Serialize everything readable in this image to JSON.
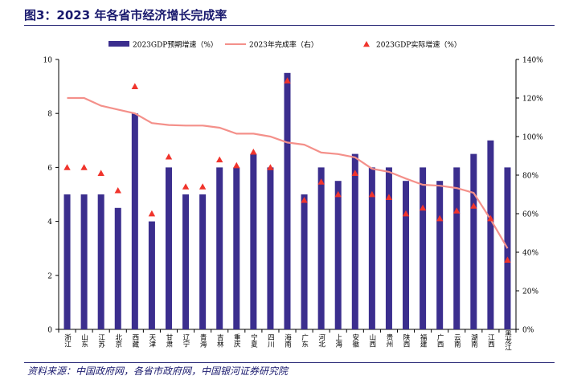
{
  "title": "图3：2023 年各省市经济增长完成率",
  "source": "资料来源：中国政府网，各省市政府网，中国银河证券研究院",
  "chart_data": {
    "type": "bar",
    "categories": [
      "浙江",
      "山东",
      "江苏",
      "北京",
      "西藏",
      "天津",
      "甘肃",
      "辽宁",
      "青海",
      "吉林",
      "重庆",
      "宁夏",
      "四川",
      "海南",
      "广东",
      "河北",
      "上海",
      "安徽",
      "山西",
      "贵州",
      "陕西",
      "福建",
      "广西",
      "云南",
      "湖南",
      "江西",
      "黑龙江"
    ],
    "series": [
      {
        "name": "2023GDP预期增速（%）",
        "type": "bar",
        "axis": "left",
        "color": "#3b2e8e",
        "values": [
          5,
          5,
          5,
          4.5,
          8,
          4,
          6,
          5,
          5,
          6,
          6,
          6.5,
          6,
          9.5,
          5,
          6,
          5.5,
          6.5,
          6,
          6,
          5.5,
          6,
          5.5,
          6,
          6.5,
          7,
          6
        ]
      },
      {
        "name": "2023年完成率（右）",
        "type": "line",
        "axis": "right",
        "color": "#f4908a",
        "values": [
          120,
          120,
          116,
          114,
          112,
          107,
          106,
          105.7,
          105.7,
          104.6,
          101.5,
          101.5,
          100,
          96.9,
          95.8,
          91.7,
          90.9,
          89.2,
          83.3,
          81.7,
          78.2,
          75,
          74.5,
          73.3,
          70.8,
          57.1,
          42
        ]
      },
      {
        "name": "2023GDP实际增速（%）",
        "type": "scatter",
        "axis": "right",
        "color": "#f0342c",
        "values": [
          84,
          84,
          81,
          72,
          126,
          60,
          89.5,
          74,
          74,
          88,
          85,
          92,
          84,
          129,
          67,
          76.5,
          70,
          81,
          70,
          68.5,
          60,
          63,
          57.5,
          61.5,
          64,
          57.5,
          36
        ]
      }
    ],
    "ylim_left": [
      0,
      10
    ],
    "yticks_left": [
      0,
      2,
      4,
      6,
      8,
      10
    ],
    "ylim_right": [
      0,
      140
    ],
    "yticks_right": [
      "0%",
      "20%",
      "40%",
      "60%",
      "80%",
      "100%",
      "120%",
      "140%"
    ],
    "legend_position": "top"
  }
}
